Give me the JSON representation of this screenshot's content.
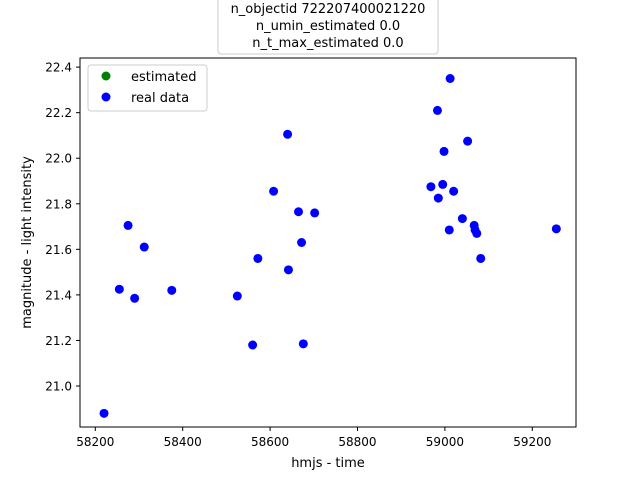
{
  "chart_data": {
    "type": "scatter",
    "title_lines": [
      "n_objectid 722207400021220",
      "n_umin_estimated 0.0",
      "n_t_max_estimated 0.0"
    ],
    "xlabel": "hmjs - time",
    "ylabel": "magnitude - light intensity",
    "xlim": [
      58165,
      59300
    ],
    "ylim": [
      20.82,
      22.44
    ],
    "x_ticks": [
      58200,
      58400,
      58600,
      58800,
      59000,
      59200
    ],
    "x_tick_labels": [
      "58200",
      "58400",
      "58600",
      "58800",
      "59000",
      "59200"
    ],
    "y_ticks": [
      21.0,
      21.2,
      21.4,
      21.6,
      21.8,
      22.0,
      22.2,
      22.4
    ],
    "y_tick_labels": [
      "21.0",
      "21.2",
      "21.4",
      "21.6",
      "21.8",
      "22.0",
      "22.2",
      "22.4"
    ],
    "grid": false,
    "legend_position": "upper-left",
    "series": [
      {
        "name": "estimated",
        "color": "#008000",
        "points": []
      },
      {
        "name": "real data",
        "color": "#0000ff",
        "points": [
          {
            "x": 58220,
            "y": 20.88
          },
          {
            "x": 58255,
            "y": 21.425
          },
          {
            "x": 58275,
            "y": 21.705
          },
          {
            "x": 58290,
            "y": 21.385
          },
          {
            "x": 58312,
            "y": 21.61
          },
          {
            "x": 58375,
            "y": 21.42
          },
          {
            "x": 58525,
            "y": 21.395
          },
          {
            "x": 58560,
            "y": 21.18
          },
          {
            "x": 58572,
            "y": 21.56
          },
          {
            "x": 58608,
            "y": 21.855
          },
          {
            "x": 58640,
            "y": 22.105
          },
          {
            "x": 58642,
            "y": 21.51
          },
          {
            "x": 58665,
            "y": 21.765
          },
          {
            "x": 58672,
            "y": 21.63
          },
          {
            "x": 58676,
            "y": 21.185
          },
          {
            "x": 58702,
            "y": 21.76
          },
          {
            "x": 58968,
            "y": 21.875
          },
          {
            "x": 58983,
            "y": 22.21
          },
          {
            "x": 58985,
            "y": 21.825
          },
          {
            "x": 58995,
            "y": 21.885
          },
          {
            "x": 58998,
            "y": 22.03
          },
          {
            "x": 59010,
            "y": 21.685
          },
          {
            "x": 59012,
            "y": 22.35
          },
          {
            "x": 59020,
            "y": 21.855
          },
          {
            "x": 59040,
            "y": 21.735
          },
          {
            "x": 59052,
            "y": 22.075
          },
          {
            "x": 59067,
            "y": 21.705
          },
          {
            "x": 59069,
            "y": 21.685
          },
          {
            "x": 59073,
            "y": 21.67
          },
          {
            "x": 59082,
            "y": 21.56
          },
          {
            "x": 59255,
            "y": 21.69
          }
        ]
      }
    ]
  }
}
